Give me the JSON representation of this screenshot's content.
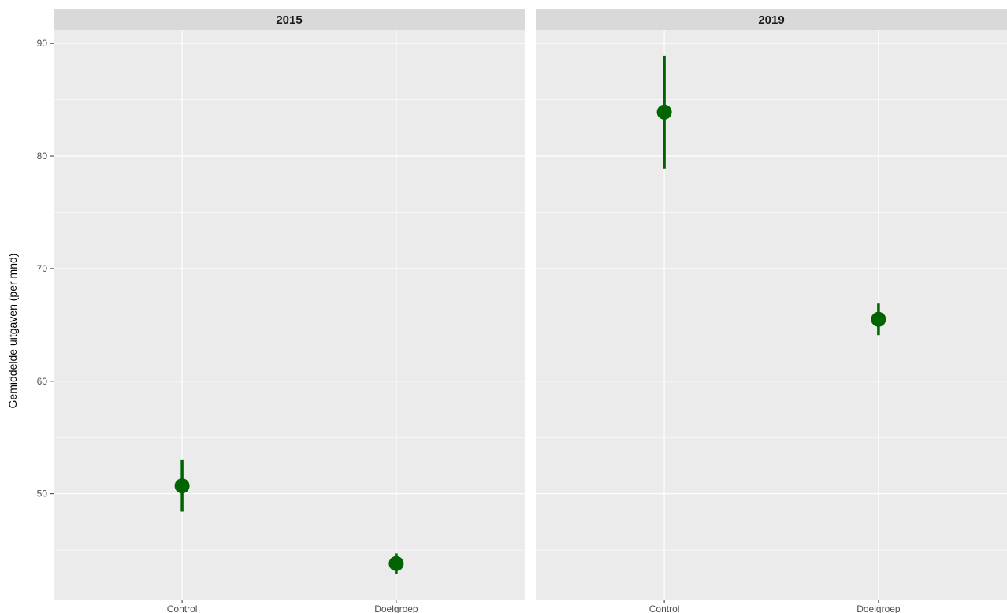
{
  "chart_data": {
    "type": "scatter",
    "ylabel": "Gemiddelde uitgaven (per mnd)",
    "xlabel": "",
    "ylim": [
      40.6,
      91.2
    ],
    "yticks": [
      50,
      60,
      70,
      80,
      90
    ],
    "categories": [
      "Control",
      "Doelgroep"
    ],
    "grid": true,
    "legend": "none",
    "colors": {
      "point": "#006400",
      "panel_bg": "#ebebeb",
      "strip_bg": "#d9d9d9",
      "grid": "#ffffff"
    },
    "panels": [
      {
        "title": "2015",
        "points": [
          {
            "x": "Control",
            "y": 50.7,
            "ymin": 48.4,
            "ymax": 53.0
          },
          {
            "x": "Doelgroep",
            "y": 43.8,
            "ymin": 42.9,
            "ymax": 44.7
          }
        ]
      },
      {
        "title": "2019",
        "points": [
          {
            "x": "Control",
            "y": 83.9,
            "ymin": 78.9,
            "ymax": 88.9
          },
          {
            "x": "Doelgroep",
            "y": 65.5,
            "ymin": 64.1,
            "ymax": 66.9
          }
        ]
      }
    ]
  }
}
